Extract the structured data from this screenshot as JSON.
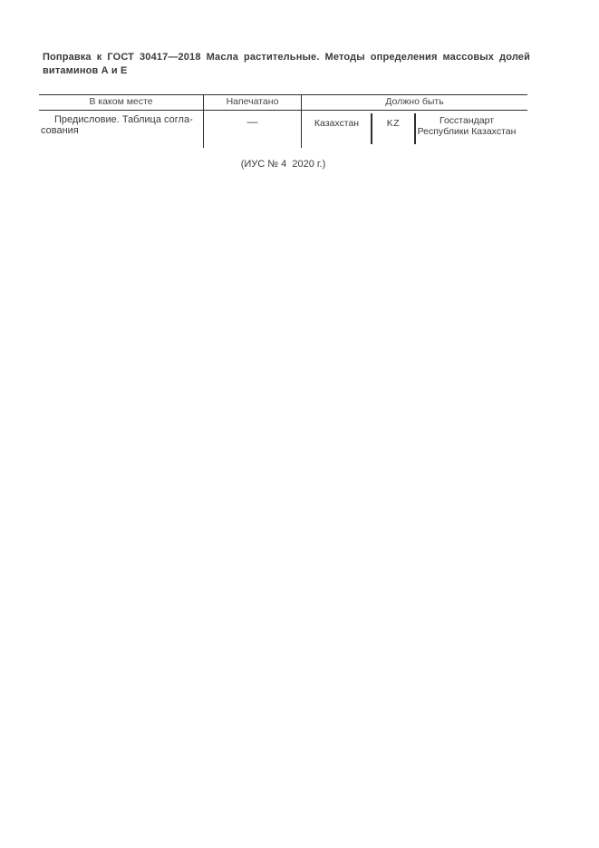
{
  "page": {
    "background": "#ffffff",
    "text_color": "#3a3a3a",
    "line_color": "#2e2e2e"
  },
  "document": {
    "title_line1": "Поправка к ГОСТ 30417—2018 Масла растительные. Методы определения массовых долей",
    "title_line2": "витаминов А и Е",
    "footer_note": "(ИУС № 4  2020 г.)"
  },
  "table": {
    "columns": [
      {
        "label": "В каком месте"
      },
      {
        "label": "Напечатано"
      },
      {
        "label": "Должно быть"
      }
    ],
    "row": {
      "location_line1": "Предисловие. Таблица согла-",
      "location_line2": "сования",
      "printed": "—",
      "should_be": {
        "country": "Казахстан",
        "code": "KZ",
        "organization_line1": "Госстандарт",
        "organization_line2": "Республики Казахстан"
      }
    }
  }
}
